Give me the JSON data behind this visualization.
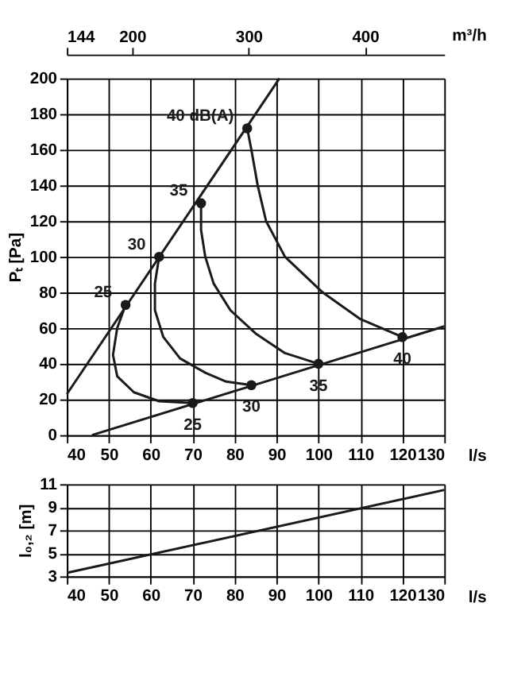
{
  "chart_data": [
    {
      "type": "line",
      "xlabel": "l/s",
      "ylabel": "Pₜ [Pa]",
      "x2label": "m³/h",
      "xlim": [
        40,
        130
      ],
      "xticks": [
        40,
        50,
        60,
        70,
        80,
        90,
        100,
        110,
        120,
        130
      ],
      "ylim": [
        0,
        200
      ],
      "yticks": [
        0,
        20,
        40,
        60,
        80,
        100,
        120,
        140,
        160,
        180,
        200
      ],
      "x2lim": [
        144,
        468
      ],
      "x2ticks": [
        144,
        200,
        300,
        400
      ],
      "grid": true,
      "line_style": "solid",
      "marker": "none",
      "series": [
        {
          "color": "#1a1a1a",
          "x": [
            40,
            90.7
          ],
          "values": [
            23,
            200
          ]
        },
        {
          "color": "#1a1a1a",
          "x": [
            46,
            130
          ],
          "values": [
            0,
            61
          ]
        },
        {
          "color": "#1a1a1a",
          "x": [
            54,
            52,
            51,
            52,
            56,
            62,
            70
          ],
          "values": [
            73,
            60,
            45,
            33,
            24,
            19,
            18
          ]
        },
        {
          "color": "#1a1a1a",
          "x": [
            62,
            61,
            61,
            63,
            67,
            73,
            78,
            84
          ],
          "values": [
            100,
            85,
            70,
            55,
            43,
            35,
            30,
            28
          ]
        },
        {
          "color": "#1a1a1a",
          "x": [
            72,
            72,
            73,
            75,
            79,
            85,
            92,
            100
          ],
          "values": [
            130,
            115,
            100,
            85,
            70,
            57,
            46,
            40
          ]
        },
        {
          "color": "#1a1a1a",
          "x": [
            83,
            84,
            85.5,
            87.5,
            92,
            101,
            110,
            120
          ],
          "values": [
            172,
            160,
            140,
            120,
            100,
            80,
            65,
            55
          ]
        },
        {
          "type": "scatter",
          "marker": "circle",
          "color": "#1a1a1a",
          "x": [
            54,
            62,
            72,
            83,
            70,
            84,
            100,
            120
          ],
          "values": [
            73,
            100,
            130,
            172,
            18,
            28,
            40,
            55
          ]
        }
      ],
      "annotations": [
        {
          "text": "40 dB(A)",
          "x": 83,
          "y": 172
        },
        {
          "text": "35",
          "x": 72,
          "y": 130
        },
        {
          "text": "30",
          "x": 62,
          "y": 100
        },
        {
          "text": "25",
          "x": 54,
          "y": 73
        },
        {
          "text": "25",
          "x": 70,
          "y": 18
        },
        {
          "text": "30",
          "x": 84,
          "y": 28
        },
        {
          "text": "35",
          "x": 100,
          "y": 40
        },
        {
          "text": "40",
          "x": 120,
          "y": 55
        }
      ]
    },
    {
      "type": "line",
      "xlabel": "l/s",
      "ylabel": "l₀,₂ [m]",
      "xlim": [
        40,
        130
      ],
      "xticks": [
        40,
        50,
        60,
        70,
        80,
        90,
        100,
        110,
        120,
        130
      ],
      "ylim": [
        3,
        11
      ],
      "yticks": [
        3,
        5,
        7,
        9,
        11
      ],
      "grid": true,
      "line_style": "solid",
      "marker": "none",
      "series": [
        {
          "color": "#1a1a1a",
          "x": [
            40,
            130
          ],
          "values": [
            3.3,
            10.5
          ]
        }
      ]
    }
  ]
}
